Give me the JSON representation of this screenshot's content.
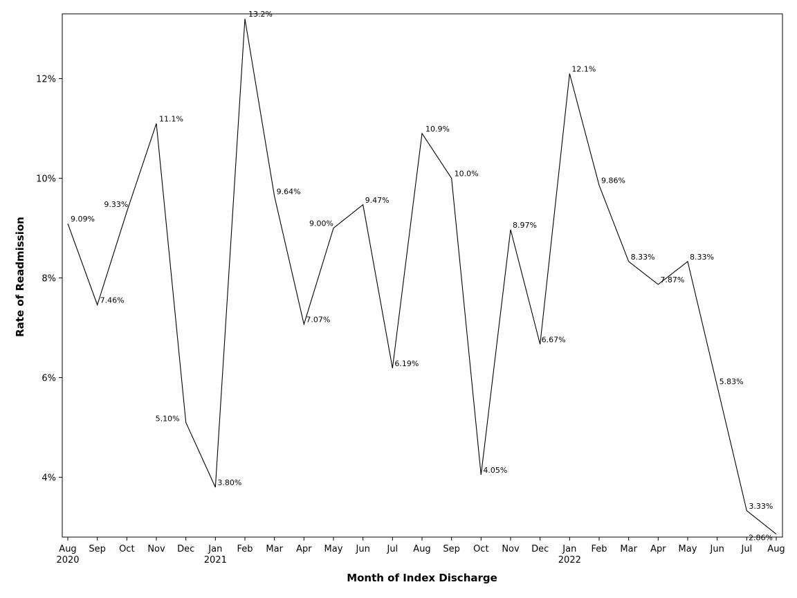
{
  "chart_data": {
    "type": "line",
    "xlabel": "Month of Index Discharge",
    "ylabel": "Rate of Readmission",
    "ylim": [
      2.8,
      13.3
    ],
    "yticks": [
      {
        "value": 4,
        "label": "4%"
      },
      {
        "value": 6,
        "label": "6%"
      },
      {
        "value": 8,
        "label": "8%"
      },
      {
        "value": 10,
        "label": "10%"
      },
      {
        "value": 12,
        "label": "12%"
      }
    ],
    "years": [
      {
        "index": 0,
        "label": "2020"
      },
      {
        "index": 5,
        "label": "2021"
      },
      {
        "index": 17,
        "label": "2022"
      }
    ],
    "series": [
      {
        "name": "Rate of Readmission",
        "points": [
          {
            "month": "Aug",
            "value": 9.09,
            "label": "9.09%"
          },
          {
            "month": "Sep",
            "value": 7.46,
            "label": "7.46%"
          },
          {
            "month": "Oct",
            "value": 9.33,
            "label": "9.33%"
          },
          {
            "month": "Nov",
            "value": 11.1,
            "label": "11.1%"
          },
          {
            "month": "Dec",
            "value": 5.1,
            "label": "5.10%"
          },
          {
            "month": "Jan",
            "value": 3.8,
            "label": "3.80%"
          },
          {
            "month": "Feb",
            "value": 13.2,
            "label": "13.2%"
          },
          {
            "month": "Mar",
            "value": 9.64,
            "label": "9.64%"
          },
          {
            "month": "Apr",
            "value": 7.07,
            "label": "7.07%"
          },
          {
            "month": "May",
            "value": 9.0,
            "label": "9.00%"
          },
          {
            "month": "Jun",
            "value": 9.47,
            "label": "9.47%"
          },
          {
            "month": "Jul",
            "value": 6.19,
            "label": "6.19%"
          },
          {
            "month": "Aug",
            "value": 10.9,
            "label": "10.9%"
          },
          {
            "month": "Sep",
            "value": 10.0,
            "label": "10.0%"
          },
          {
            "month": "Oct",
            "value": 4.05,
            "label": "4.05%"
          },
          {
            "month": "Nov",
            "value": 8.97,
            "label": "8.97%"
          },
          {
            "month": "Dec",
            "value": 6.67,
            "label": "6.67%"
          },
          {
            "month": "Jan",
            "value": 12.1,
            "label": "12.1%"
          },
          {
            "month": "Feb",
            "value": 9.86,
            "label": "9.86%"
          },
          {
            "month": "Mar",
            "value": 8.33,
            "label": "8.33%"
          },
          {
            "month": "Apr",
            "value": 7.87,
            "label": "7.87%"
          },
          {
            "month": "May",
            "value": 8.33,
            "label": "8.33%"
          },
          {
            "month": "Jun",
            "value": 5.83,
            "label": "5.83%"
          },
          {
            "month": "Jul",
            "value": 3.33,
            "label": "3.33%"
          },
          {
            "month": "Aug",
            "value": 2.86,
            "label": "2.86%"
          }
        ]
      }
    ]
  }
}
